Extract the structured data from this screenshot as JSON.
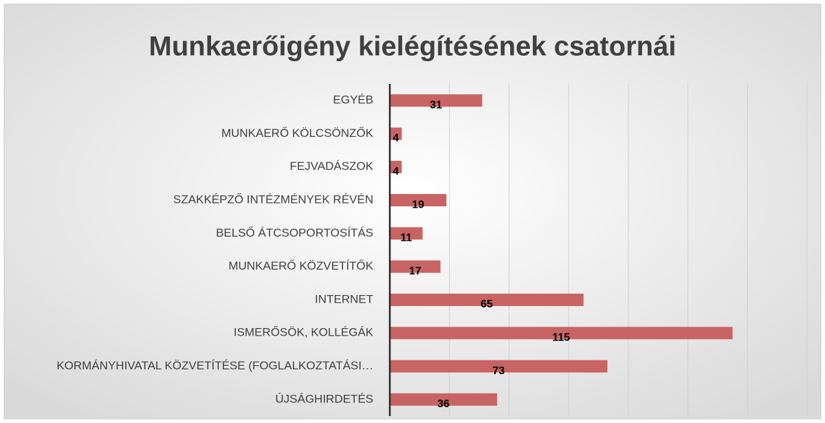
{
  "chart_data": {
    "type": "bar",
    "orientation": "horizontal",
    "title": "Munkaerőigény kielégítésének csatornái",
    "categories": [
      "EGYÉB",
      "MUNKAERŐ KÖLCSÖNZŐK",
      "FEJVADÁSZOK",
      "SZAKKÉPZŐ INTÉZMÉNYEK RÉVÉN",
      "BELSŐ ÁTCSOPORTOSÍTÁS",
      "MUNKAERŐ KÖZVETÍTŐK",
      "INTERNET",
      "ISMERŐSÖK, KOLLÉGÁK",
      "KORMÁNYHIVATAL KÖZVETÍTÉSE (FOGLALKOZTATÁSI…",
      "ÚJSÁGHIRDETÉS"
    ],
    "values": [
      31,
      4,
      4,
      19,
      11,
      17,
      65,
      115,
      73,
      36
    ],
    "color": "#c96464",
    "xlim": [
      0,
      140
    ],
    "xticks": [
      0,
      20,
      40,
      60,
      80,
      100,
      120,
      140
    ],
    "grid": true
  }
}
